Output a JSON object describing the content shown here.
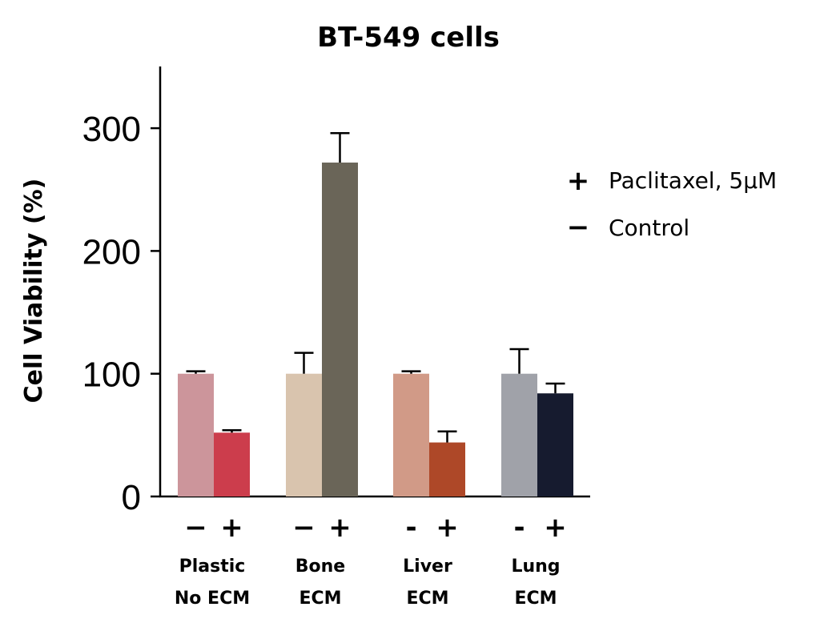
{
  "chart_data": {
    "type": "bar",
    "title": "BT-549 cells",
    "xlabel": "",
    "ylabel": "Cell Viability (%)",
    "ylim": [
      0,
      350
    ],
    "yticks": [
      "0",
      "100",
      "200",
      "300"
    ],
    "ytick_values": [
      0,
      100,
      200,
      300
    ],
    "grid": false,
    "legend_position": "right",
    "categories": [
      {
        "line1": "Plastic",
        "line2": "No ECM"
      },
      {
        "line1": "Bone",
        "line2": "ECM"
      },
      {
        "line1": "Liver",
        "line2": "ECM"
      },
      {
        "line1": "Lung",
        "line2": "ECM"
      }
    ],
    "series": [
      {
        "name": "Control",
        "symbol": "−",
        "values": [
          100,
          100,
          100,
          100
        ],
        "errors": [
          2,
          17,
          2,
          20
        ],
        "colors": [
          "#cc959b",
          "#d9c4ae",
          "#d19a87",
          "#a0a2a9"
        ]
      },
      {
        "name": "Paclitaxel, 5μM",
        "symbol": "+",
        "values": [
          52,
          272,
          44,
          84
        ],
        "errors": [
          2,
          24,
          9,
          8
        ],
        "colors": [
          "#cc3d4c",
          "#6a6558",
          "#ae4828",
          "#161b2f"
        ]
      }
    ],
    "sign_labels": [
      "−",
      "+",
      "−",
      "+",
      "-",
      "+",
      "-",
      "+"
    ],
    "legend": [
      {
        "symbol": "+",
        "label": "Paclitaxel, 5μM"
      },
      {
        "symbol": "−",
        "label": "Control"
      }
    ]
  }
}
